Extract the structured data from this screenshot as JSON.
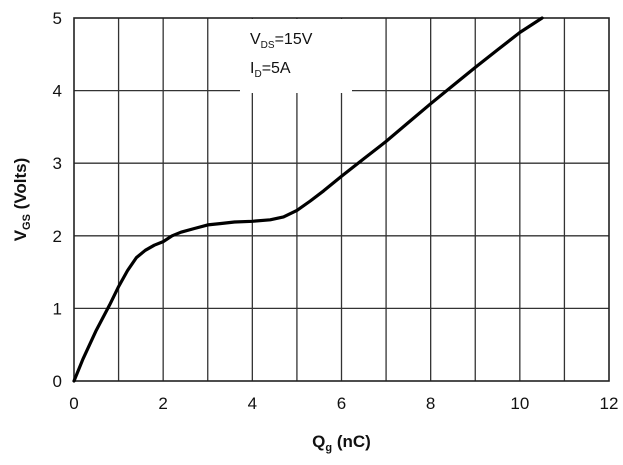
{
  "chart_data": {
    "type": "line",
    "xlabel": {
      "main": "Q",
      "sub": "g",
      "rest": " (nC)"
    },
    "ylabel": {
      "main": "V",
      "sub": "GS",
      "rest": " (Volts)"
    },
    "xlim": [
      0,
      12
    ],
    "ylim": [
      0,
      5
    ],
    "xticks": [
      "0",
      "2",
      "4",
      "6",
      "8",
      "10",
      "12"
    ],
    "yticks": [
      "0",
      "1",
      "2",
      "3",
      "4",
      "5"
    ],
    "x_grid_step": 1,
    "y_grid_step": 1,
    "grid": true,
    "annotation": [
      {
        "main": "V",
        "sub": "DS",
        "rest": "=15V"
      },
      {
        "main": "I",
        "sub": "D",
        "rest": "=5A"
      }
    ],
    "series": [
      {
        "x": [
          0,
          0.2,
          0.5,
          0.8,
          1.0,
          1.2,
          1.4,
          1.6,
          1.8,
          2.0,
          2.2,
          2.4,
          2.7,
          3.0,
          3.3,
          3.6,
          4.0,
          4.4,
          4.7,
          5.0,
          5.3,
          5.6,
          6.0,
          6.5,
          7.0,
          7.5,
          8.0,
          8.5,
          9.0,
          9.5,
          10.0,
          10.5
        ],
        "y": [
          0,
          0.3,
          0.7,
          1.05,
          1.3,
          1.52,
          1.7,
          1.8,
          1.87,
          1.92,
          2.0,
          2.05,
          2.1,
          2.15,
          2.17,
          2.19,
          2.2,
          2.22,
          2.26,
          2.35,
          2.48,
          2.62,
          2.82,
          3.06,
          3.3,
          3.56,
          3.82,
          4.07,
          4.32,
          4.56,
          4.8,
          5.02
        ]
      }
    ]
  }
}
